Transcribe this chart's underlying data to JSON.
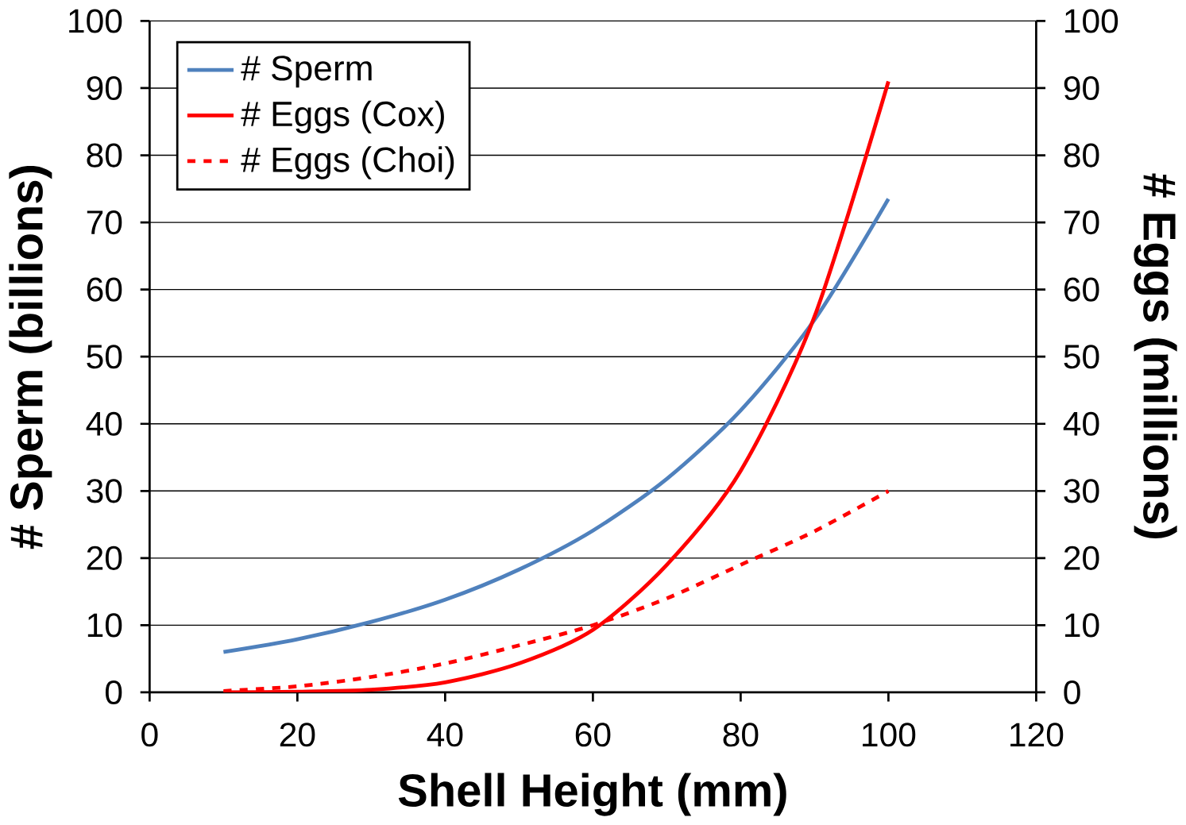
{
  "chart_data": {
    "type": "line",
    "xlabel": "Shell Height (mm)",
    "ylabel": "# Sperm (billions)",
    "y2label": "# Eggs (millions)",
    "x": [
      10,
      20,
      30,
      40,
      50,
      60,
      70,
      80,
      90,
      100
    ],
    "series": [
      {
        "name": "# Sperm",
        "color": "#4f81bd",
        "line_style": "solid",
        "values": [
          6,
          7.9,
          10.5,
          13.8,
          18.3,
          24.1,
          31.8,
          42,
          55.5,
          73.5
        ]
      },
      {
        "name": "# Eggs (Cox)",
        "color": "#ff0000",
        "line_style": "solid",
        "axis": "y2",
        "values": [
          0,
          0.1,
          0.4,
          1.5,
          4.3,
          9.3,
          19,
          33,
          56,
          91
        ]
      },
      {
        "name": "# Eggs (Choi)",
        "color": "#ff0000",
        "line_style": "dashed",
        "axis": "y2",
        "values": [
          0.2,
          0.9,
          2.3,
          4.3,
          7,
          10,
          14,
          19,
          24,
          30
        ]
      }
    ],
    "xlim": [
      0,
      120
    ],
    "xticks": [
      0,
      20,
      40,
      60,
      80,
      100,
      120
    ],
    "ylim": [
      0,
      100
    ],
    "yticks": [
      0,
      10,
      20,
      30,
      40,
      50,
      60,
      70,
      80,
      90,
      100
    ],
    "y2lim": [
      0,
      100
    ],
    "y2ticks": [
      0,
      10,
      20,
      30,
      40,
      50,
      60,
      70,
      80,
      90,
      100
    ],
    "grid": "y",
    "legend": "top left"
  }
}
